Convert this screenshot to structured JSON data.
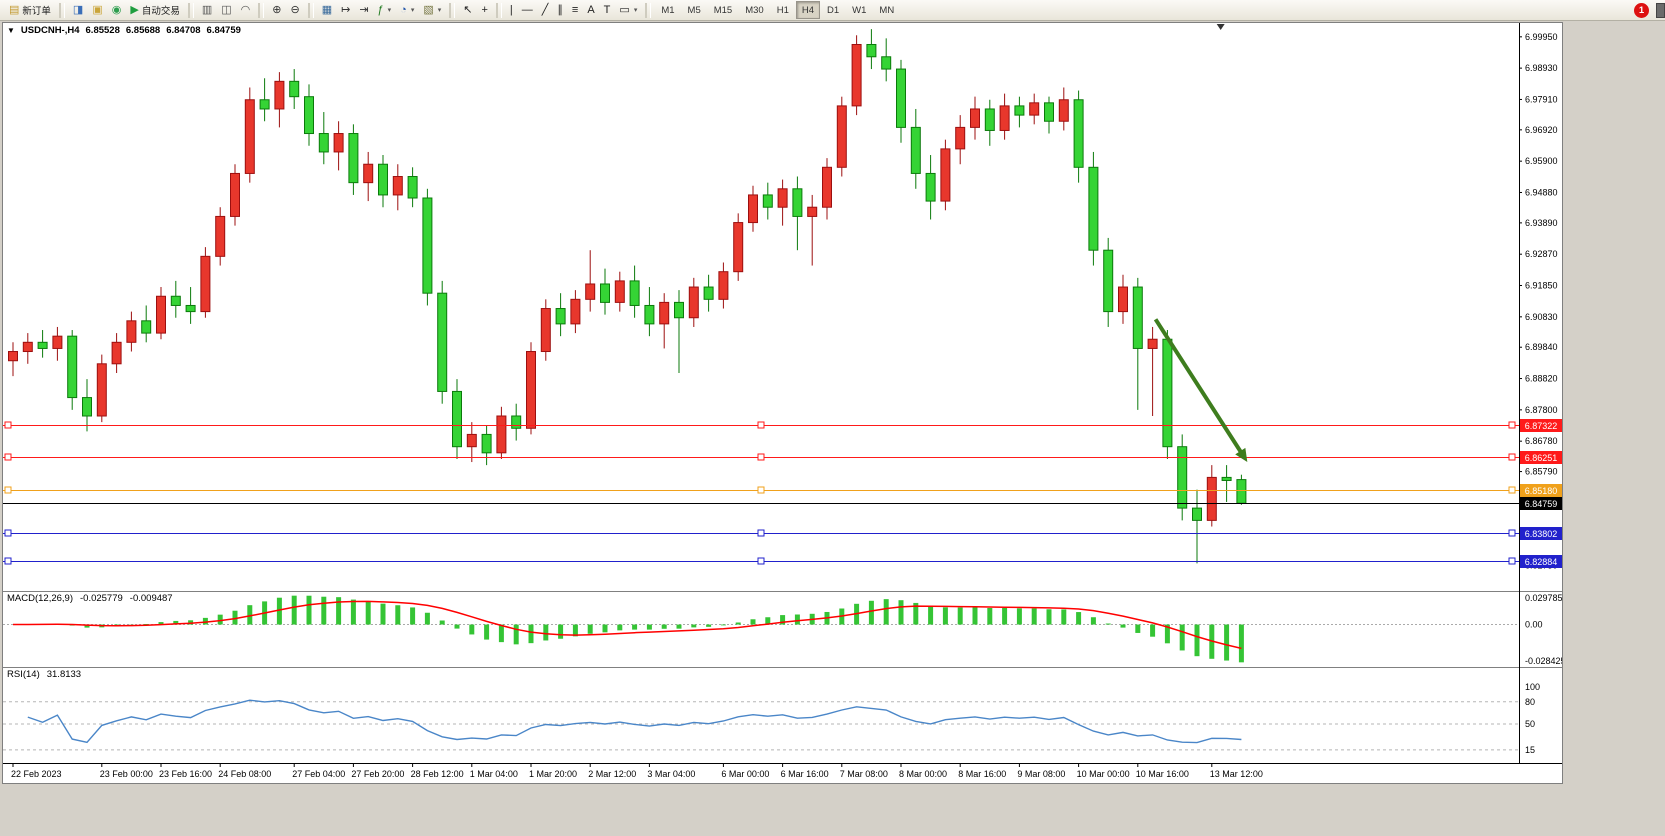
{
  "toolbar": {
    "items": [
      {
        "type": "button",
        "name": "new-order-button",
        "icon": "new-order",
        "label": "新订单"
      },
      {
        "type": "sep"
      },
      {
        "type": "button",
        "name": "market-watch-button",
        "icon": "market-watch"
      },
      {
        "type": "button",
        "name": "data-window-button",
        "icon": "data-window"
      },
      {
        "type": "button",
        "name": "navigator-button",
        "icon": "navigator"
      },
      {
        "type": "button",
        "name": "autotrading-button",
        "icon": "autotrading",
        "label": "自动交易"
      },
      {
        "type": "sep"
      },
      {
        "type": "button",
        "name": "bar-chart-button",
        "icon": "bar-chart"
      },
      {
        "type": "button",
        "name": "candlestick-chart-button",
        "icon": "candlestick"
      },
      {
        "type": "button",
        "name": "line-chart-button",
        "icon": "line-chart"
      },
      {
        "type": "sep"
      },
      {
        "type": "button",
        "name": "zoom-in-button",
        "icon": "zoom-in"
      },
      {
        "type": "button",
        "name": "zoom-out-button",
        "icon": "zoom-out"
      },
      {
        "type": "sep"
      },
      {
        "type": "button",
        "name": "tile-windows-button",
        "icon": "tile-windows"
      },
      {
        "type": "button",
        "name": "auto-scroll-button",
        "icon": "auto-scroll"
      },
      {
        "type": "button",
        "name": "chart-shift-button",
        "icon": "chart-shift"
      },
      {
        "type": "button",
        "name": "indicators-button",
        "icon": "indicators",
        "dropdown": true
      },
      {
        "type": "button",
        "name": "periods-button",
        "icon": "clock",
        "dropdown": true
      },
      {
        "type": "button",
        "name": "templates-button",
        "icon": "templates",
        "dropdown": true
      },
      {
        "type": "sep"
      },
      {
        "type": "button",
        "name": "cursor-button",
        "icon": "cursor"
      },
      {
        "type": "button",
        "name": "crosshair-button",
        "icon": "crosshair"
      },
      {
        "type": "sep"
      },
      {
        "type": "button",
        "name": "vertical-line-button",
        "icon": "vline"
      },
      {
        "type": "button",
        "name": "horizontal-line-button",
        "icon": "hline"
      },
      {
        "type": "button",
        "name": "trendline-button",
        "icon": "trendline"
      },
      {
        "type": "button",
        "name": "channel-button",
        "icon": "channel"
      },
      {
        "type": "button",
        "name": "fibonacci-button",
        "icon": "fibonacci"
      },
      {
        "type": "button",
        "name": "text-button",
        "icon": "text"
      },
      {
        "type": "button",
        "name": "label-button",
        "icon": "label"
      },
      {
        "type": "button",
        "name": "shapes-button",
        "icon": "shapes",
        "dropdown": true
      },
      {
        "type": "sep"
      },
      {
        "type": "tf",
        "name": "tf-m1",
        "label": "M1"
      },
      {
        "type": "tf",
        "name": "tf-m5",
        "label": "M5"
      },
      {
        "type": "tf",
        "name": "tf-m15",
        "label": "M15"
      },
      {
        "type": "tf",
        "name": "tf-m30",
        "label": "M30"
      },
      {
        "type": "tf",
        "name": "tf-h1",
        "label": "H1"
      },
      {
        "type": "tf",
        "name": "tf-h4",
        "label": "H4",
        "active": true
      },
      {
        "type": "tf",
        "name": "tf-d1",
        "label": "D1"
      },
      {
        "type": "tf",
        "name": "tf-w1",
        "label": "W1"
      },
      {
        "type": "tf",
        "name": "tf-mn",
        "label": "MN"
      }
    ],
    "badge": {
      "value": "1",
      "color": "#dd1111"
    }
  },
  "chart_header": {
    "symbol_period": "USDCNH-,H4",
    "open": "6.85528",
    "high": "6.85688",
    "low": "6.84708",
    "close": "6.84759"
  },
  "indicators": {
    "macd": {
      "label": "MACD(12,26,9)",
      "main_value": "-0.025779",
      "signal_value": "-0.009487",
      "axis": [
        "0.029785",
        "0.00",
        "-0.028425"
      ]
    },
    "rsi": {
      "label": "RSI(14)",
      "value": "31.8133",
      "axis": [
        "100",
        "80",
        "50",
        "15"
      ],
      "levels": [
        80,
        50,
        15
      ]
    }
  },
  "chart_data": {
    "type": "candlestick",
    "symbol": "USDCNH-",
    "timeframe": "H4",
    "ylim": [
      6.819,
      7.004
    ],
    "price_axis_ticks": [
      "6.99950",
      "6.98930",
      "6.97910",
      "6.96920",
      "6.95900",
      "6.94880",
      "6.93890",
      "6.92870",
      "6.91850",
      "6.90830",
      "6.89840",
      "6.88820",
      "6.87800",
      "6.86780",
      "6.85790",
      "6.84770",
      "6.83750",
      "6.82730"
    ],
    "candles": [
      [
        6.894,
        6.9,
        6.889,
        6.897
      ],
      [
        6.897,
        6.903,
        6.893,
        6.9
      ],
      [
        6.9,
        6.904,
        6.895,
        6.898
      ],
      [
        6.898,
        6.905,
        6.894,
        6.902
      ],
      [
        6.902,
        6.904,
        6.878,
        6.882
      ],
      [
        6.882,
        6.888,
        6.871,
        6.876
      ],
      [
        6.876,
        6.896,
        6.874,
        6.893
      ],
      [
        6.893,
        6.903,
        6.89,
        6.9
      ],
      [
        6.9,
        6.91,
        6.897,
        6.907
      ],
      [
        6.907,
        6.912,
        6.9,
        6.903
      ],
      [
        6.903,
        6.918,
        6.901,
        6.915
      ],
      [
        6.915,
        6.92,
        6.908,
        6.912
      ],
      [
        6.912,
        6.918,
        6.906,
        6.91
      ],
      [
        6.91,
        6.931,
        6.908,
        6.928
      ],
      [
        6.928,
        6.944,
        6.925,
        6.941
      ],
      [
        6.941,
        6.958,
        6.938,
        6.955
      ],
      [
        6.955,
        6.983,
        6.952,
        6.979
      ],
      [
        6.979,
        6.986,
        6.972,
        6.976
      ],
      [
        6.976,
        6.988,
        6.97,
        6.985
      ],
      [
        6.985,
        6.989,
        6.976,
        6.98
      ],
      [
        6.98,
        6.984,
        6.964,
        6.968
      ],
      [
        6.968,
        6.975,
        6.958,
        6.962
      ],
      [
        6.962,
        6.972,
        6.956,
        6.968
      ],
      [
        6.968,
        6.971,
        6.948,
        6.952
      ],
      [
        6.952,
        6.962,
        6.946,
        6.958
      ],
      [
        6.958,
        6.961,
        6.944,
        6.948
      ],
      [
        6.948,
        6.958,
        6.943,
        6.954
      ],
      [
        6.954,
        6.957,
        6.944,
        6.947
      ],
      [
        6.947,
        6.95,
        6.912,
        6.916
      ],
      [
        6.916,
        6.92,
        6.88,
        6.884
      ],
      [
        6.884,
        6.888,
        6.862,
        6.866
      ],
      [
        6.866,
        6.874,
        6.861,
        6.87
      ],
      [
        6.87,
        6.873,
        6.86,
        6.864
      ],
      [
        6.864,
        6.879,
        6.862,
        6.876
      ],
      [
        6.876,
        6.88,
        6.868,
        6.872
      ],
      [
        6.872,
        6.9,
        6.87,
        6.897
      ],
      [
        6.897,
        6.914,
        6.894,
        6.911
      ],
      [
        6.911,
        6.916,
        6.902,
        6.906
      ],
      [
        6.906,
        6.917,
        6.903,
        6.914
      ],
      [
        6.914,
        6.93,
        6.91,
        6.919
      ],
      [
        6.919,
        6.924,
        6.909,
        6.913
      ],
      [
        6.913,
        6.923,
        6.91,
        6.92
      ],
      [
        6.92,
        6.925,
        6.908,
        6.912
      ],
      [
        6.912,
        6.918,
        6.902,
        6.906
      ],
      [
        6.906,
        6.916,
        6.898,
        6.913
      ],
      [
        6.913,
        6.917,
        6.89,
        6.908
      ],
      [
        6.908,
        6.921,
        6.905,
        6.918
      ],
      [
        6.918,
        6.922,
        6.91,
        6.914
      ],
      [
        6.914,
        6.926,
        6.911,
        6.923
      ],
      [
        6.923,
        6.942,
        6.92,
        6.939
      ],
      [
        6.939,
        6.951,
        6.936,
        6.948
      ],
      [
        6.948,
        6.952,
        6.94,
        6.944
      ],
      [
        6.944,
        6.953,
        6.938,
        6.95
      ],
      [
        6.95,
        6.954,
        6.93,
        6.941
      ],
      [
        6.941,
        6.948,
        6.925,
        6.944
      ],
      [
        6.944,
        6.96,
        6.94,
        6.957
      ],
      [
        6.957,
        6.98,
        6.954,
        6.977
      ],
      [
        6.977,
        7.0,
        6.974,
        6.997
      ],
      [
        6.997,
        7.002,
        6.989,
        6.993
      ],
      [
        6.993,
        6.999,
        6.985,
        6.989
      ],
      [
        6.989,
        6.992,
        6.965,
        6.97
      ],
      [
        6.97,
        6.976,
        6.95,
        6.955
      ],
      [
        6.955,
        6.961,
        6.94,
        6.946
      ],
      [
        6.946,
        6.966,
        6.943,
        6.963
      ],
      [
        6.963,
        6.974,
        6.958,
        6.97
      ],
      [
        6.97,
        6.98,
        6.966,
        6.976
      ],
      [
        6.976,
        6.979,
        6.964,
        6.969
      ],
      [
        6.969,
        6.981,
        6.966,
        6.977
      ],
      [
        6.977,
        6.98,
        6.97,
        6.974
      ],
      [
        6.974,
        6.981,
        6.971,
        6.978
      ],
      [
        6.978,
        6.98,
        6.968,
        6.972
      ],
      [
        6.972,
        6.983,
        6.969,
        6.979
      ],
      [
        6.979,
        6.982,
        6.952,
        6.957
      ],
      [
        6.957,
        6.962,
        6.925,
        6.93
      ],
      [
        6.93,
        6.934,
        6.905,
        6.91
      ],
      [
        6.91,
        6.922,
        6.906,
        6.918
      ],
      [
        6.918,
        6.921,
        6.878,
        6.898
      ],
      [
        6.898,
        6.905,
        6.876,
        6.901
      ],
      [
        6.901,
        6.904,
        6.862,
        6.866
      ],
      [
        6.866,
        6.87,
        6.842,
        6.846
      ],
      [
        6.846,
        6.852,
        6.828,
        6.842
      ],
      [
        6.842,
        6.86,
        6.84,
        6.856
      ],
      [
        6.856,
        6.86,
        6.848,
        6.855
      ],
      [
        6.85528,
        6.85688,
        6.84708,
        6.84759
      ]
    ],
    "time_labels": [
      [
        "22 Feb 2023",
        0
      ],
      [
        "23 Feb 00:00",
        6
      ],
      [
        "23 Feb 16:00",
        10
      ],
      [
        "24 Feb 08:00",
        14
      ],
      [
        "27 Feb 04:00",
        19
      ],
      [
        "27 Feb 20:00",
        23
      ],
      [
        "28 Feb 12:00",
        27
      ],
      [
        "1 Mar 04:00",
        31
      ],
      [
        "1 Mar 20:00",
        35
      ],
      [
        "2 Mar 12:00",
        39
      ],
      [
        "3 Mar 04:00",
        43
      ],
      [
        "6 Mar 00:00",
        48
      ],
      [
        "6 Mar 16:00",
        52
      ],
      [
        "7 Mar 08:00",
        56
      ],
      [
        "8 Mar 00:00",
        60
      ],
      [
        "8 Mar 16:00",
        64
      ],
      [
        "9 Mar 08:00",
        68
      ],
      [
        "10 Mar 00:00",
        72
      ],
      [
        "10 Mar 16:00",
        76
      ],
      [
        "13 Mar 12:00",
        81
      ]
    ],
    "hlines": [
      {
        "value": 6.87322,
        "label": "6.87322",
        "color": "#ff1a1a"
      },
      {
        "value": 6.86251,
        "label": "6.86251",
        "color": "#ff1a1a"
      },
      {
        "value": 6.8518,
        "label": "6.85180",
        "color": "#f0a11b"
      },
      {
        "value": 6.83802,
        "label": "6.83802",
        "color": "#2121cc"
      },
      {
        "value": 6.82884,
        "label": "6.82884",
        "color": "#2121cc"
      }
    ],
    "current_price": {
      "value": 6.84759,
      "label": "6.84759",
      "color": "#000000"
    },
    "arrow": {
      "from_bar": 77.2,
      "from_price": 6.9075,
      "to_bar": 83.4,
      "to_price": 6.861,
      "color": "#3e7d1e"
    },
    "shift_marker_bar": 81.6,
    "colors": {
      "up": "#e8372c",
      "up_stroke": "#9c0f0f",
      "down": "#35d435",
      "down_stroke": "#0b7a0b",
      "macd_hist": "#35c435",
      "macd_signal": "#ff0000",
      "rsi": "#4a86c8",
      "background": "#ffffff",
      "axis_text": "#000000",
      "separator": "#808080"
    }
  }
}
